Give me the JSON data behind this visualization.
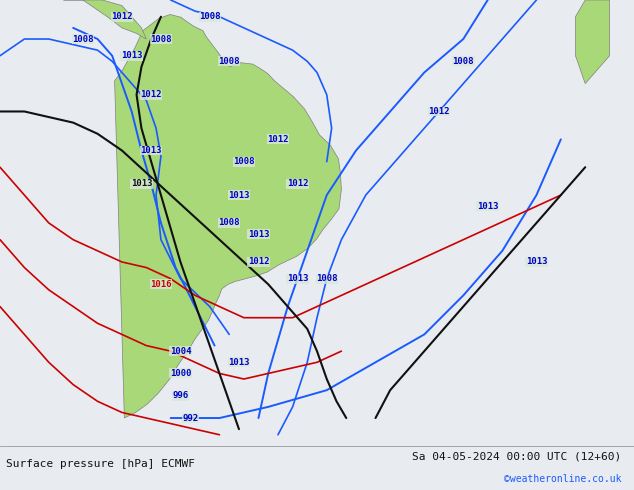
{
  "title_left": "Surface pressure [hPa] ECMWF",
  "title_right": "Sa 04-05-2024 00:00 UTC (12+60)",
  "copyright": "©weatheronline.co.uk",
  "background_color": "#d0d8e8",
  "land_color": "#b8e0a0",
  "fig_width": 6.34,
  "fig_height": 4.9,
  "dpi": 100,
  "bottom_bar_color": "#f0f0f0",
  "bottom_bar_height": 0.08,
  "font_size_bottom": 8,
  "font_size_copyright": 7
}
